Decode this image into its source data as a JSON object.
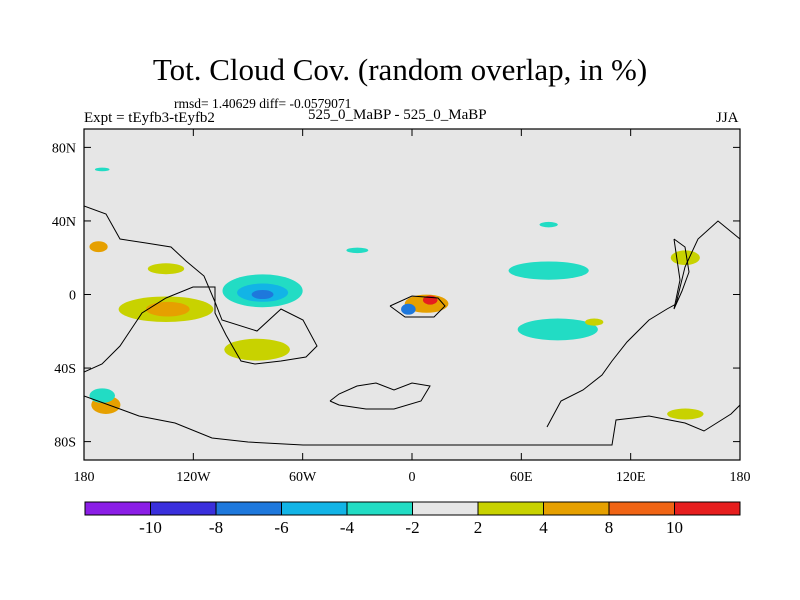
{
  "chart_data": {
    "type": "heatmap",
    "title": "Tot. Cloud Cov. (random overlap, in %)",
    "stats_text": "rmsd= 1.40629 diff= -0.0579071",
    "left_label": "Expt = tEyfb3-tEyfb2",
    "center_label": "525_0_MaBP - 525_0_MaBP",
    "right_label": "JJA",
    "projection": "cylindrical equidistant",
    "xlim": [
      -180,
      180
    ],
    "ylim": [
      -90,
      90
    ],
    "x_ticks": [
      {
        "value": -180,
        "label": "180"
      },
      {
        "value": -120,
        "label": "120W"
      },
      {
        "value": -60,
        "label": "60W"
      },
      {
        "value": 0,
        "label": "0"
      },
      {
        "value": 60,
        "label": "60E"
      },
      {
        "value": 120,
        "label": "120E"
      },
      {
        "value": 180,
        "label": "180"
      }
    ],
    "y_ticks": [
      {
        "value": 80,
        "label": "80N"
      },
      {
        "value": 40,
        "label": "40N"
      },
      {
        "value": 0,
        "label": "0"
      },
      {
        "value": -40,
        "label": "40S"
      },
      {
        "value": -80,
        "label": "80S"
      }
    ],
    "colorbar": {
      "colors": [
        "#8b1ee6",
        "#3a2fdc",
        "#1e78dc",
        "#12b4e6",
        "#22dcc4",
        "#e6e6e6",
        "#c8d200",
        "#e6a000",
        "#f06414",
        "#e61e1e"
      ],
      "labels": [
        "-10",
        "-8",
        "-6",
        "-4",
        "-2",
        "2",
        "4",
        "8",
        "10"
      ]
    },
    "anomalies": [
      {
        "name": "east-pacific-warm",
        "lon": -135,
        "lat": -8,
        "rlon": 26,
        "rlat": 7,
        "color": "#c8d200"
      },
      {
        "name": "east-pacific-core",
        "lon": -134,
        "lat": -8,
        "rlon": 12,
        "rlat": 4,
        "color": "#e6a000"
      },
      {
        "name": "south-america-warm",
        "lon": -85,
        "lat": -30,
        "rlon": 18,
        "rlat": 6,
        "color": "#c8d200"
      },
      {
        "name": "north-pacific-warm",
        "lon": -135,
        "lat": 14,
        "rlon": 10,
        "rlat": 3,
        "color": "#c8d200"
      },
      {
        "name": "atlantic-neg",
        "lon": -82,
        "lat": 2,
        "rlon": 22,
        "rlat": 9,
        "color": "#22dcc4"
      },
      {
        "name": "atlantic-neg-mid",
        "lon": -82,
        "lat": 1,
        "rlon": 14,
        "rlat": 5,
        "color": "#12b4e6"
      },
      {
        "name": "atlantic-neg-core",
        "lon": -82,
        "lat": 0,
        "rlon": 6,
        "rlat": 2.5,
        "color": "#1e78dc"
      },
      {
        "name": "indian-ocean-neg",
        "lon": 75,
        "lat": 13,
        "rlon": 22,
        "rlat": 5,
        "color": "#22dcc4"
      },
      {
        "name": "south-indian-neg",
        "lon": 80,
        "lat": -19,
        "rlon": 22,
        "rlat": 6,
        "color": "#22dcc4"
      },
      {
        "name": "africa-pos",
        "lon": 8,
        "lat": -5,
        "rlon": 12,
        "rlat": 5,
        "color": "#e6a000"
      },
      {
        "name": "africa-pos-core",
        "lon": 10,
        "lat": -3,
        "rlon": 4,
        "rlat": 2.5,
        "color": "#e61e1e"
      },
      {
        "name": "africa-neg",
        "lon": -2,
        "lat": -8,
        "rlon": 4,
        "rlat": 3,
        "color": "#1e78dc"
      },
      {
        "name": "south-pacific-pos",
        "lon": -168,
        "lat": -60,
        "rlon": 8,
        "rlat": 5,
        "color": "#e6a000"
      },
      {
        "name": "south-pacific-neg",
        "lon": -170,
        "lat": -55,
        "rlon": 7,
        "rlat": 4,
        "color": "#22dcc4"
      },
      {
        "name": "west-pacific-pos",
        "lon": 150,
        "lat": 20,
        "rlon": 8,
        "rlat": 4,
        "color": "#c8d200"
      },
      {
        "name": "polar-pos",
        "lon": 150,
        "lat": -65,
        "rlon": 10,
        "rlat": 3,
        "color": "#c8d200"
      },
      {
        "name": "date-line-pos",
        "lon": -172,
        "lat": 26,
        "rlon": 5,
        "rlat": 3,
        "color": "#e6a000"
      },
      {
        "name": "north-scatter",
        "lon": -170,
        "lat": 68,
        "rlon": 4,
        "rlat": 1,
        "color": "#22dcc4"
      },
      {
        "name": "mid-atlantic-neg",
        "lon": -30,
        "lat": 24,
        "rlon": 6,
        "rlat": 1.5,
        "color": "#22dcc4"
      },
      {
        "name": "eurasia-neg",
        "lon": 75,
        "lat": 38,
        "rlon": 5,
        "rlat": 1.5,
        "color": "#22dcc4"
      },
      {
        "name": "southwest-indian-pos",
        "lon": 100,
        "lat": -15,
        "rlon": 5,
        "rlat": 2,
        "color": "#c8d200"
      }
    ],
    "coastlines": [
      {
        "name": "americas-coast",
        "points": [
          [
            -180,
            -42
          ],
          [
            -170,
            -38
          ],
          [
            -160,
            -28
          ],
          [
            -148,
            -10
          ],
          [
            -135,
            -2
          ],
          [
            -120,
            4
          ],
          [
            -108,
            4
          ],
          [
            -108,
            -10
          ],
          [
            -102,
            -22
          ],
          [
            -94,
            -36
          ],
          [
            -86,
            -38
          ],
          [
            -72,
            -36
          ],
          [
            -58,
            -34
          ],
          [
            -52,
            -28
          ],
          [
            -60,
            -14
          ],
          [
            -72,
            -8
          ],
          [
            -85,
            -20
          ],
          [
            -104,
            -14
          ],
          [
            -108,
            -4
          ],
          [
            -114,
            10
          ],
          [
            -124,
            18
          ],
          [
            -132,
            26
          ],
          [
            -146,
            28
          ],
          [
            -160,
            30
          ],
          [
            -168,
            44
          ],
          [
            -180,
            48
          ]
        ]
      },
      {
        "name": "africa-coast",
        "points": [
          [
            -12,
            -6
          ],
          [
            -4,
            -12
          ],
          [
            12,
            -12
          ],
          [
            18,
            -6
          ],
          [
            14,
            -2
          ],
          [
            0,
            -1
          ],
          [
            -12,
            -6
          ]
        ]
      },
      {
        "name": "antarctica-coast",
        "points": [
          [
            -180,
            -55
          ],
          [
            -160,
            -62
          ],
          [
            -150,
            -66
          ],
          [
            -130,
            -70
          ],
          [
            -110,
            -78
          ],
          [
            -90,
            -80
          ],
          [
            -60,
            -82
          ],
          [
            0,
            -82
          ],
          [
            60,
            -82
          ],
          [
            110,
            -82
          ],
          [
            112,
            -68
          ],
          [
            130,
            -66
          ],
          [
            150,
            -70
          ],
          [
            160,
            -74
          ],
          [
            175,
            -65
          ],
          [
            180,
            -60
          ]
        ]
      },
      {
        "name": "southern-island",
        "points": [
          [
            -45,
            -58
          ],
          [
            -40,
            -54
          ],
          [
            -30,
            -50
          ],
          [
            -20,
            -48
          ],
          [
            -10,
            -52
          ],
          [
            0,
            -48
          ],
          [
            10,
            -50
          ],
          [
            5,
            -58
          ],
          [
            -10,
            -62
          ],
          [
            -25,
            -62
          ],
          [
            -40,
            -60
          ],
          [
            -45,
            -58
          ]
        ]
      },
      {
        "name": "asia-coast",
        "points": [
          [
            180,
            30
          ],
          [
            168,
            40
          ],
          [
            157,
            30
          ],
          [
            150,
            15
          ],
          [
            145,
            -5
          ],
          [
            140,
            -8
          ],
          [
            130,
            -14
          ],
          [
            118,
            -26
          ],
          [
            110,
            -36
          ],
          [
            104,
            -44
          ],
          [
            94,
            -52
          ],
          [
            82,
            -58
          ],
          [
            74,
            -72
          ]
        ]
      },
      {
        "name": "east-asia-coast",
        "points": [
          [
            144,
            30
          ],
          [
            150,
            26
          ],
          [
            152,
            12
          ],
          [
            148,
            2
          ],
          [
            144,
            -8
          ],
          [
            147,
            8
          ],
          [
            144,
            30
          ]
        ]
      }
    ]
  }
}
